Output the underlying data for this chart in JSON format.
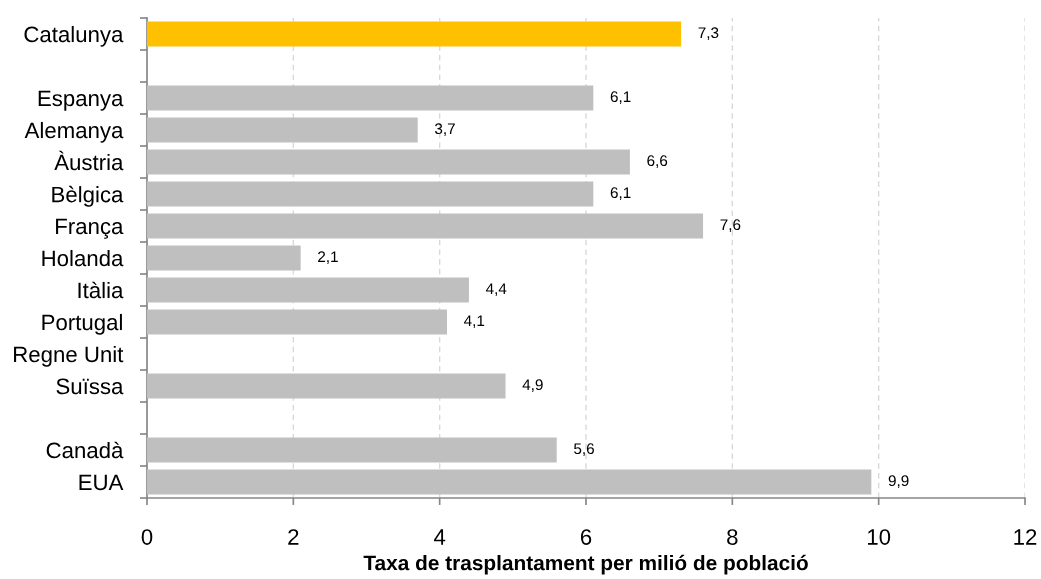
{
  "chart_data": {
    "type": "bar",
    "orientation": "horizontal",
    "xlabel": "Taxa de trasplantament per milió de població",
    "categories": [
      "Catalunya",
      null,
      "Espanya",
      "Alemanya",
      "Àustria",
      "Bèlgica",
      "França",
      "Holanda",
      "Itàlia",
      "Portugal",
      "Regne Unit",
      "Suïssa",
      null,
      "Canadà",
      "EUA"
    ],
    "values": [
      7.3,
      null,
      6.1,
      3.7,
      6.6,
      6.1,
      7.6,
      2.1,
      4.4,
      4.1,
      null,
      4.9,
      null,
      5.6,
      9.9
    ],
    "colors": [
      "#ffc000",
      null,
      "#bfbfbf",
      "#bfbfbf",
      "#bfbfbf",
      "#bfbfbf",
      "#bfbfbf",
      "#bfbfbf",
      "#bfbfbf",
      "#bfbfbf",
      null,
      "#bfbfbf",
      null,
      "#bfbfbf",
      "#bfbfbf"
    ],
    "value_labels": [
      "7,3",
      null,
      "6,1",
      "3,7",
      "6,6",
      "6,1",
      "7,6",
      "2,1",
      "4,4",
      "4,1",
      null,
      "4,9",
      null,
      "5,6",
      "9,9"
    ],
    "xlim": [
      0,
      12
    ],
    "xticks": [
      0,
      2,
      4,
      6,
      8,
      10,
      12
    ],
    "grid": "x"
  }
}
